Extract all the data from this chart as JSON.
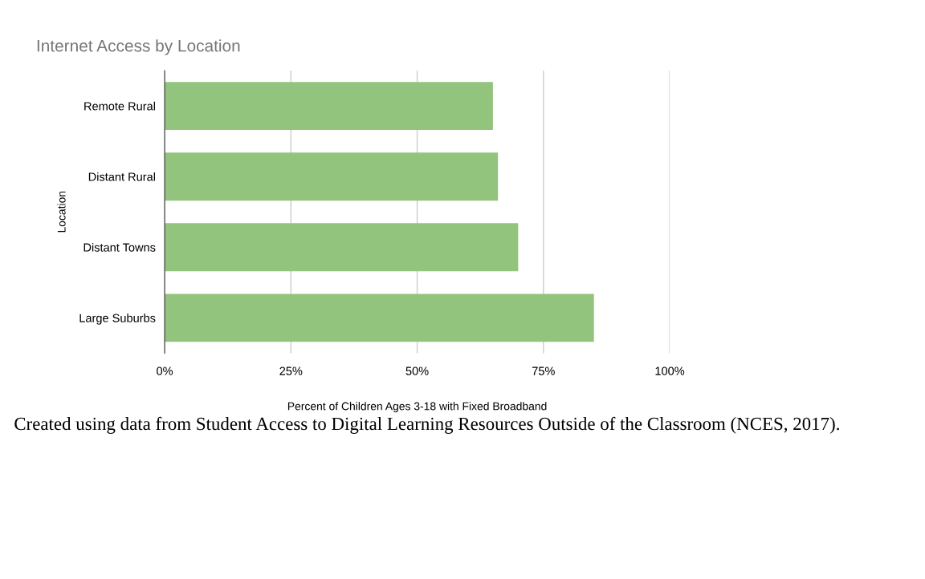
{
  "chart_data": {
    "type": "bar",
    "orientation": "horizontal",
    "title": "Internet Access by Location",
    "xlabel": "Percent of Children Ages 3-18 with Fixed Broadband",
    "ylabel": "Location",
    "categories": [
      "Remote Rural",
      "Distant Rural",
      "Distant Towns",
      "Large Suburbs"
    ],
    "values": [
      65,
      66,
      70,
      85
    ],
    "color": "#93c47d",
    "xlim": [
      0,
      100
    ],
    "xticks": [
      {
        "value": 0,
        "label": "0%"
      },
      {
        "value": 25,
        "label": "25%"
      },
      {
        "value": 50,
        "label": "50%"
      },
      {
        "value": 75,
        "label": "75%"
      },
      {
        "value": 100,
        "label": "100%"
      }
    ],
    "grid": "x",
    "legend": false,
    "annotations": [
      "Created using data from Student Access to Digital Learning Resources Outside of the Classroom (NCES, 2017)."
    ]
  }
}
